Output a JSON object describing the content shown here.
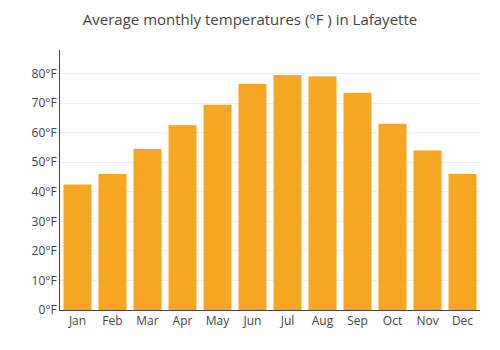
{
  "chart_data": {
    "type": "bar",
    "title": "Average monthly temperatures (°F ) in Lafayette",
    "categories": [
      "Jan",
      "Feb",
      "Mar",
      "Apr",
      "May",
      "Jun",
      "Jul",
      "Aug",
      "Sep",
      "Oct",
      "Nov",
      "Dec"
    ],
    "values": [
      42.5,
      46.0,
      54.5,
      62.5,
      69.5,
      76.5,
      79.5,
      79.0,
      73.5,
      63.0,
      54.0,
      46.0
    ],
    "color": "#F5A623",
    "ylim": [
      0,
      88
    ],
    "yticks": [
      {
        "value": 0,
        "label": "0°F"
      },
      {
        "value": 10,
        "label": "10°F"
      },
      {
        "value": 20,
        "label": "20°F"
      },
      {
        "value": 30,
        "label": "30°F"
      },
      {
        "value": 40,
        "label": "40°F"
      },
      {
        "value": 50,
        "label": "50°F"
      },
      {
        "value": 60,
        "label": "60°F"
      },
      {
        "value": 70,
        "label": "70°F"
      },
      {
        "value": 80,
        "label": "80°F"
      }
    ],
    "grid": true
  }
}
